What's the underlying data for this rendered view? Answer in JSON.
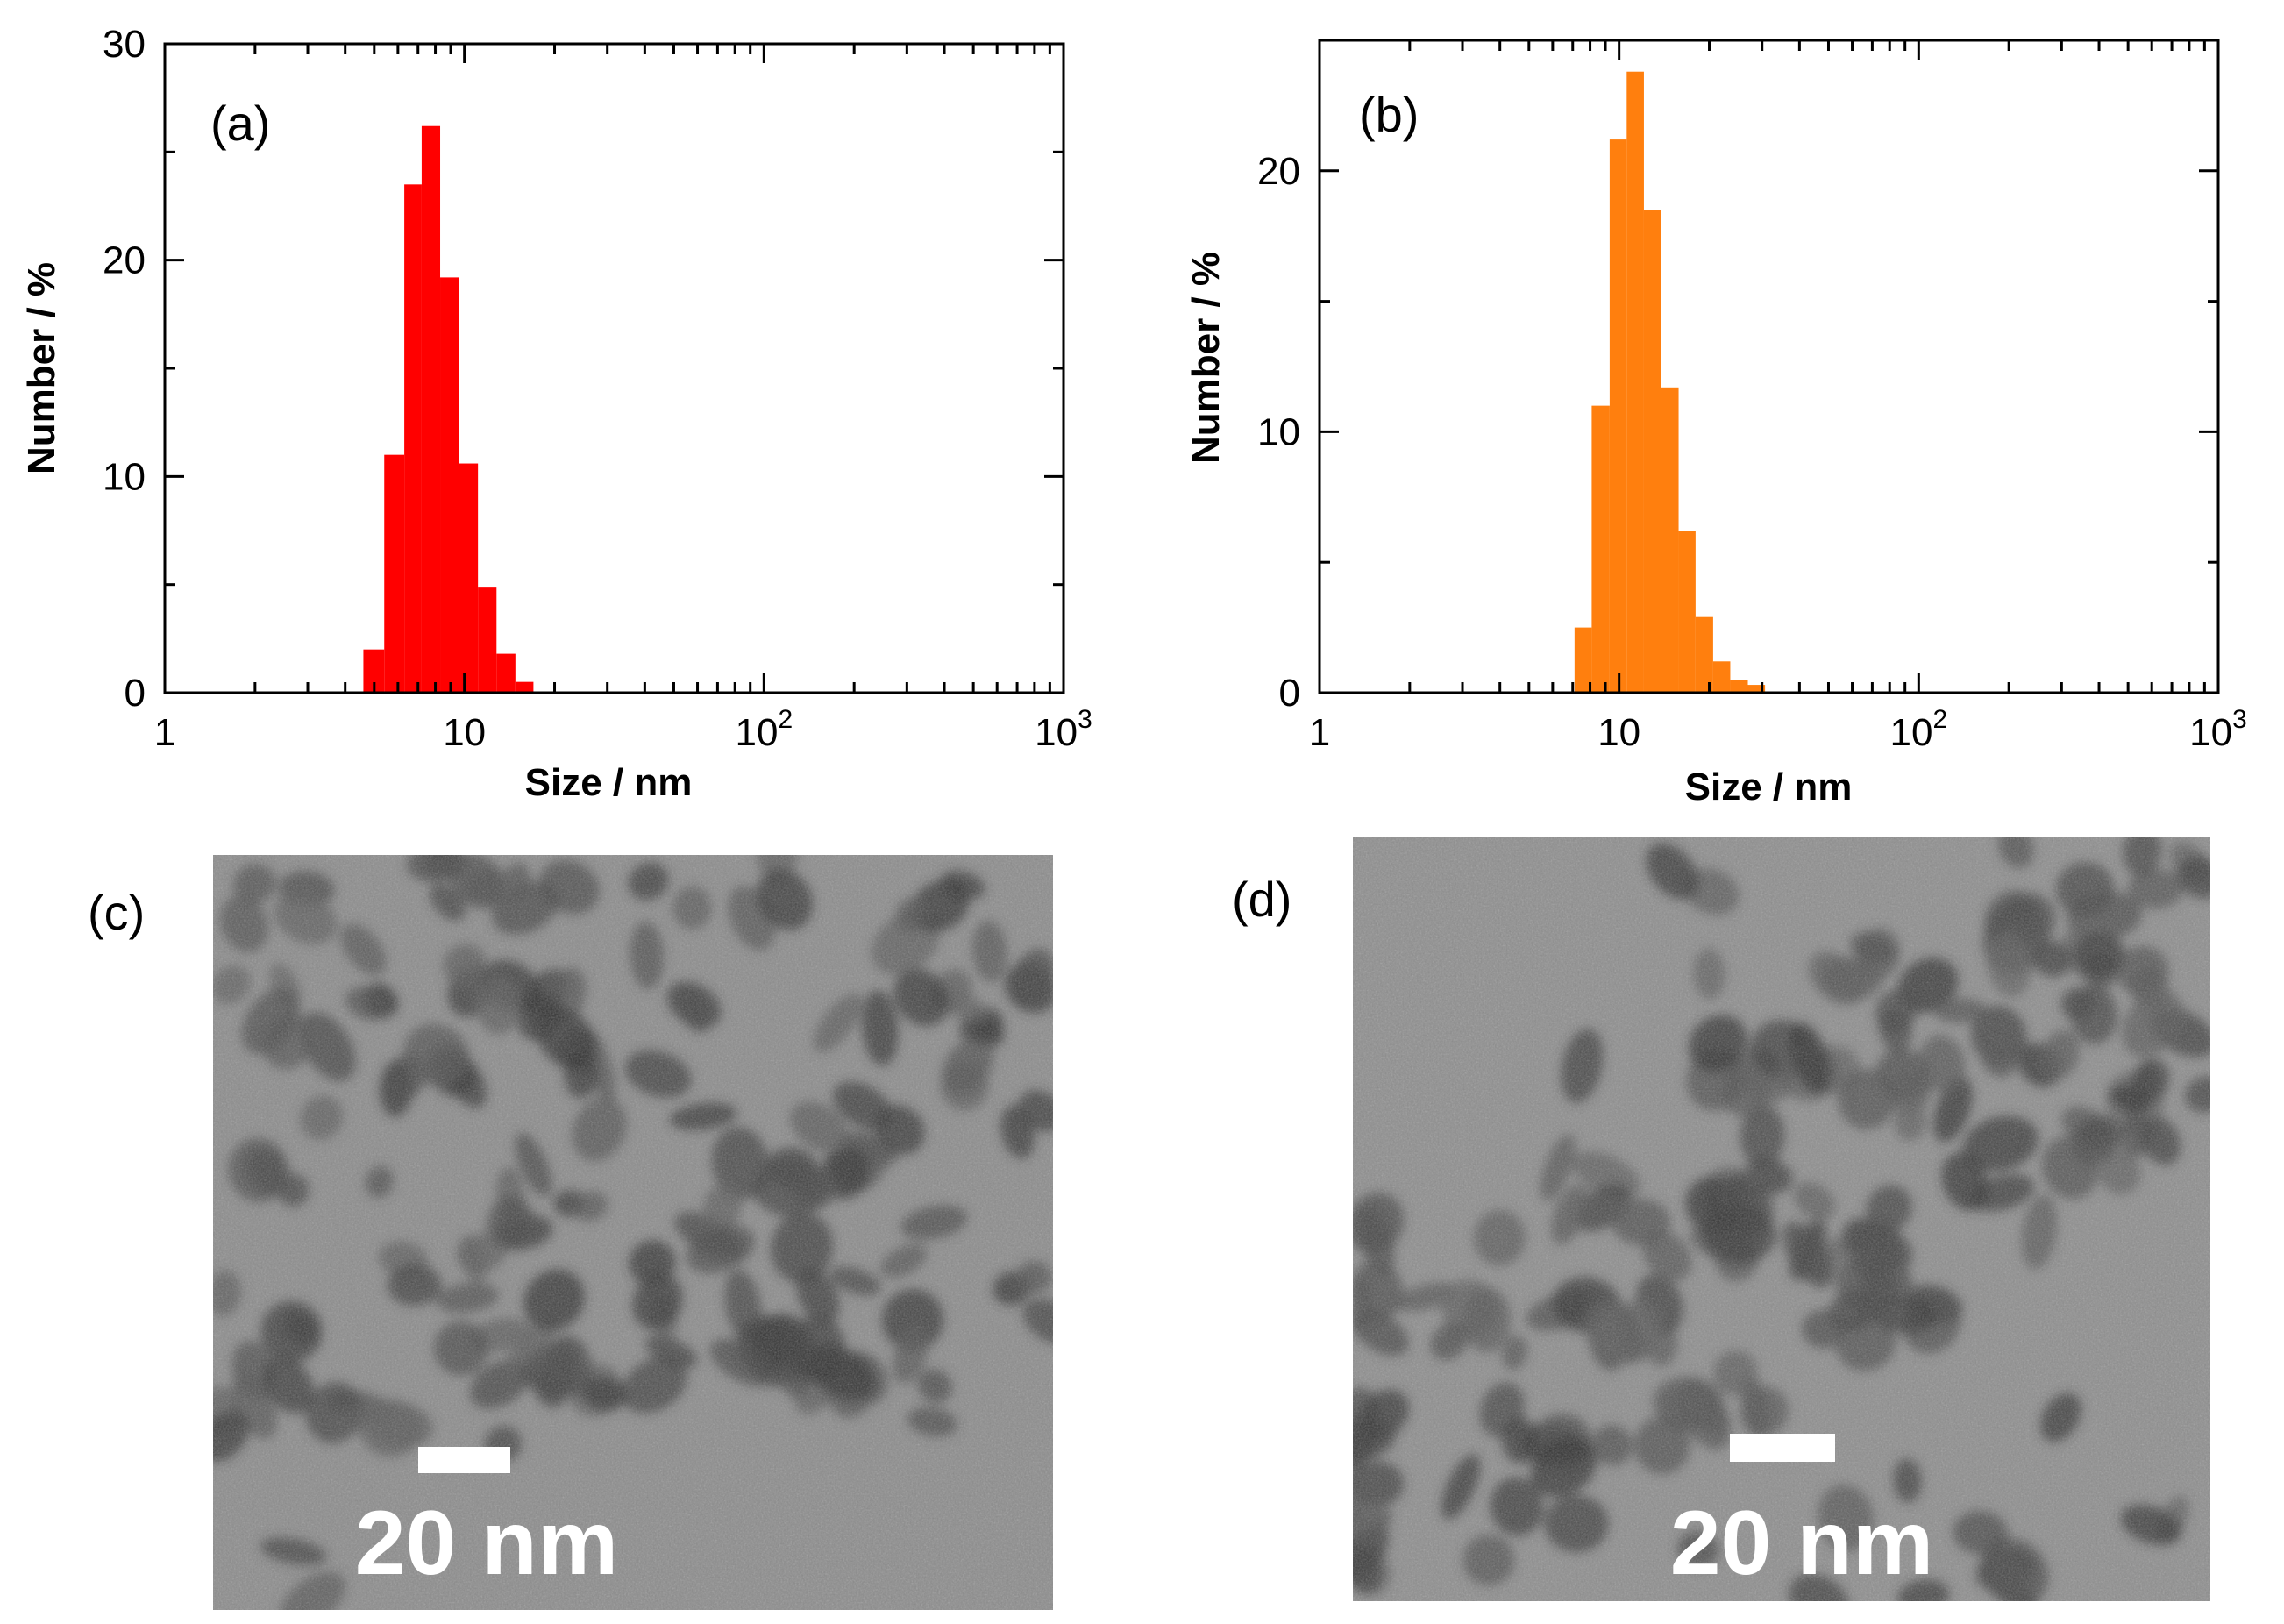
{
  "colors": {
    "panel_a_bars": "#ff0000",
    "panel_b_bars": "#ff7f0e",
    "axis": "#000000",
    "tem_background": "#8a8a8a",
    "tem_particle": "#3a3a3a",
    "scale_bar": "#ffffff"
  },
  "chart_data": [
    {
      "type": "bar",
      "panel_label": "(a)",
      "x_scale": "log",
      "xlabel": "Size / nm",
      "ylabel": "Number / %",
      "xlim": [
        1,
        1000
      ],
      "ylim": [
        0,
        30
      ],
      "xticks": [
        1,
        10,
        100,
        1000
      ],
      "xtick_labels": [
        {
          "base": "1",
          "exp": ""
        },
        {
          "base": "10",
          "exp": ""
        },
        {
          "base": "10",
          "exp": "2"
        },
        {
          "base": "10",
          "exp": "3"
        }
      ],
      "yticks": [
        0,
        10,
        20,
        30
      ],
      "grid": false,
      "bins": [
        {
          "x_start": 4.6,
          "x_end": 5.4,
          "value": 2.0
        },
        {
          "x_start": 5.4,
          "x_end": 6.3,
          "value": 11.0
        },
        {
          "x_start": 6.3,
          "x_end": 7.2,
          "value": 23.5
        },
        {
          "x_start": 7.2,
          "x_end": 8.3,
          "value": 26.2
        },
        {
          "x_start": 8.3,
          "x_end": 9.6,
          "value": 19.2
        },
        {
          "x_start": 9.6,
          "x_end": 11.1,
          "value": 10.6
        },
        {
          "x_start": 11.1,
          "x_end": 12.8,
          "value": 4.9
        },
        {
          "x_start": 12.8,
          "x_end": 14.8,
          "value": 1.8
        },
        {
          "x_start": 14.8,
          "x_end": 17.0,
          "value": 0.5
        }
      ]
    },
    {
      "type": "bar",
      "panel_label": "(b)",
      "x_scale": "log",
      "xlabel": "Size / nm",
      "ylabel": "Number / %",
      "xlim": [
        1,
        1000
      ],
      "ylim": [
        0,
        25
      ],
      "xticks": [
        1,
        10,
        100,
        1000
      ],
      "xtick_labels": [
        {
          "base": "1",
          "exp": ""
        },
        {
          "base": "10",
          "exp": ""
        },
        {
          "base": "10",
          "exp": "2"
        },
        {
          "base": "10",
          "exp": "3"
        }
      ],
      "yticks": [
        0,
        10,
        20
      ],
      "grid": false,
      "bins": [
        {
          "x_start": 7.1,
          "x_end": 8.1,
          "value": 2.5
        },
        {
          "x_start": 8.1,
          "x_end": 9.3,
          "value": 11.0
        },
        {
          "x_start": 9.3,
          "x_end": 10.6,
          "value": 21.2
        },
        {
          "x_start": 10.6,
          "x_end": 12.1,
          "value": 23.8
        },
        {
          "x_start": 12.1,
          "x_end": 13.8,
          "value": 18.5
        },
        {
          "x_start": 13.8,
          "x_end": 15.8,
          "value": 11.7
        },
        {
          "x_start": 15.8,
          "x_end": 18.0,
          "value": 6.2
        },
        {
          "x_start": 18.0,
          "x_end": 20.6,
          "value": 2.9
        },
        {
          "x_start": 20.6,
          "x_end": 23.5,
          "value": 1.2
        },
        {
          "x_start": 23.5,
          "x_end": 26.9,
          "value": 0.5
        },
        {
          "x_start": 26.9,
          "x_end": 30.7,
          "value": 0.3
        }
      ]
    }
  ],
  "images": [
    {
      "panel_label": "(c)",
      "scale_bar_label": "20 nm"
    },
    {
      "panel_label": "(d)",
      "scale_bar_label": "20 nm"
    }
  ]
}
